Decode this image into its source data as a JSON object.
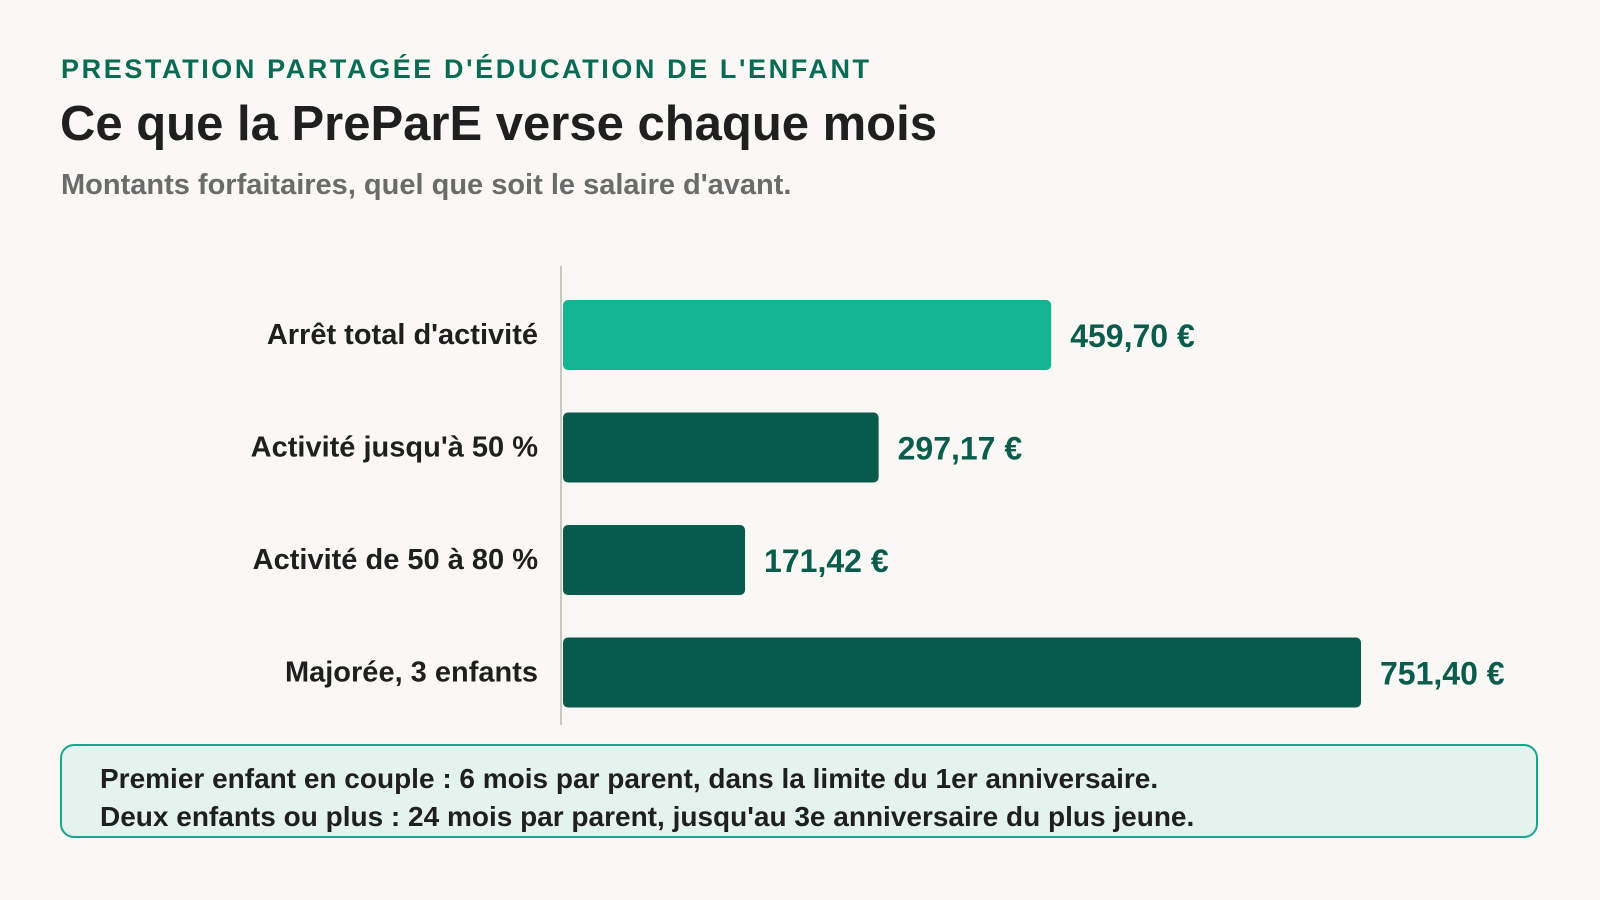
{
  "header": {
    "kicker": "PRESTATION PARTAGÉE D'ÉDUCATION DE L'ENFANT",
    "title": "Ce que la PreParE verse chaque mois",
    "subtitle": "Montants forfaitaires, quel que soit le salaire d'avant."
  },
  "chart_data": {
    "type": "bar",
    "orientation": "horizontal",
    "categories": [
      "Arrêt total d'activité",
      "Activité jusqu'à 50 %",
      "Activité de 50 à 80 %",
      "Majorée, 3 enfants"
    ],
    "values": [
      459.7,
      297.17,
      171.42,
      751.4
    ],
    "value_labels": [
      "459,70 €",
      "297,17 €",
      "171,42 €",
      "751,40 €"
    ],
    "bar_colors": [
      "#14b592",
      "#075a4c",
      "#075a4c",
      "#075a4c"
    ],
    "xlim": [
      0,
      751.4
    ],
    "grid": false,
    "title": "",
    "xlabel": "",
    "ylabel": ""
  },
  "note": {
    "lines": [
      "Premier enfant en couple : 6 mois par parent, dans la limite du 1er anniversaire.",
      "Deux enfants ou plus : 24 mois par parent, jusqu'au 3e anniversaire du plus jeune."
    ]
  }
}
